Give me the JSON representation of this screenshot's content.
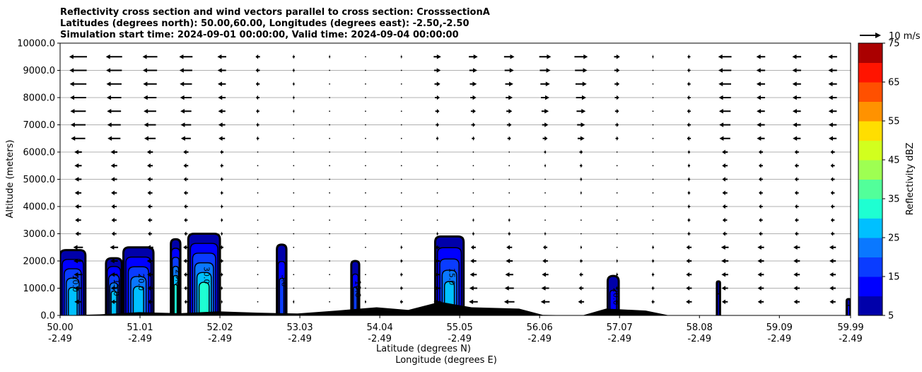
{
  "chart_data": {
    "type": "contour",
    "title_lines": [
      "Reflectivity cross section and wind vectors parallel to cross section: CrosssectionA",
      "Latitudes (degrees north): 50.00,60.00, Longitudes (degrees east): -2.50,-2.50",
      "Simulation start time: 2024-09-01 00:00:00, Valid time: 2024-09-04 00:00:00"
    ],
    "xlabel_lines": [
      "Latitude (degrees N)",
      "Longitude (degrees E)"
    ],
    "ylabel": "Altitude (meters)",
    "ylim": [
      0,
      10000
    ],
    "xlim": [
      50.0,
      59.99
    ],
    "y_ticks": [
      "0.0",
      "1000.0",
      "2000.0",
      "3000.0",
      "4000.0",
      "5000.0",
      "6000.0",
      "7000.0",
      "8000.0",
      "9000.0",
      "10000.0"
    ],
    "x_ticks": [
      {
        "lat": "50.00",
        "lon": "-2.49"
      },
      {
        "lat": "51.01",
        "lon": "-2.49"
      },
      {
        "lat": "52.02",
        "lon": "-2.49"
      },
      {
        "lat": "53.03",
        "lon": "-2.49"
      },
      {
        "lat": "54.04",
        "lon": "-2.49"
      },
      {
        "lat": "55.05",
        "lon": "-2.49"
      },
      {
        "lat": "56.06",
        "lon": "-2.49"
      },
      {
        "lat": "57.07",
        "lon": "-2.49"
      },
      {
        "lat": "58.08",
        "lon": "-2.49"
      },
      {
        "lat": "59.09",
        "lon": "-2.49"
      },
      {
        "lat": "59.99",
        "lon": "-2.49"
      }
    ],
    "grid": "horizontal",
    "colorbar": {
      "label": "Reflectivity dBZ",
      "tick_labels": [
        "5",
        "15",
        "25",
        "35",
        "45",
        "55",
        "65",
        "75"
      ],
      "levels": [
        5,
        10,
        15,
        20,
        25,
        30,
        35,
        40,
        45,
        50,
        55,
        60,
        65,
        70,
        75
      ],
      "colors": [
        "#0000aa",
        "#0000ff",
        "#0a3cff",
        "#0a78ff",
        "#00c0ff",
        "#1effd2",
        "#52ff9a",
        "#9eff52",
        "#d2ff1e",
        "#ffde00",
        "#ff9200",
        "#ff5000",
        "#ff1400",
        "#aa0000"
      ]
    },
    "quiver_key": "10 m/s",
    "cells": [
      {
        "lat_min": 50.0,
        "lat_max": 50.32,
        "top": 2400,
        "max_dbz": 28
      },
      {
        "lat_min": 50.58,
        "lat_max": 50.78,
        "top": 2100,
        "max_dbz": 25
      },
      {
        "lat_min": 50.8,
        "lat_max": 51.18,
        "top": 2500,
        "max_dbz": 26
      },
      {
        "lat_min": 51.4,
        "lat_max": 51.52,
        "top": 2800,
        "max_dbz": 33
      },
      {
        "lat_min": 51.62,
        "lat_max": 52.02,
        "top": 3000,
        "max_dbz": 33
      },
      {
        "lat_min": 52.74,
        "lat_max": 52.86,
        "top": 2600,
        "max_dbz": 18
      },
      {
        "lat_min": 53.68,
        "lat_max": 53.78,
        "top": 2000,
        "max_dbz": 17
      },
      {
        "lat_min": 54.74,
        "lat_max": 55.1,
        "top": 2900,
        "max_dbz": 27
      },
      {
        "lat_min": 56.92,
        "lat_max": 57.06,
        "top": 1450,
        "max_dbz": 14
      },
      {
        "lat_min": 58.3,
        "lat_max": 58.34,
        "top": 1250,
        "max_dbz": 12
      },
      {
        "lat_min": 59.94,
        "lat_max": 59.99,
        "top": 600,
        "max_dbz": 10
      }
    ],
    "contour_labels": [
      "10.0",
      "15.0",
      "20.0",
      "25.0",
      "30.0",
      "5.0"
    ],
    "terrain": [
      {
        "lat": 50.0,
        "height": 0
      },
      {
        "lat": 50.5,
        "height": 40
      },
      {
        "lat": 51.0,
        "height": 120
      },
      {
        "lat": 51.5,
        "height": 80
      },
      {
        "lat": 52.0,
        "height": 150
      },
      {
        "lat": 52.5,
        "height": 100
      },
      {
        "lat": 53.0,
        "height": 70
      },
      {
        "lat": 53.5,
        "height": 180
      },
      {
        "lat": 54.0,
        "height": 300
      },
      {
        "lat": 54.4,
        "height": 200
      },
      {
        "lat": 54.8,
        "height": 500
      },
      {
        "lat": 55.2,
        "height": 300
      },
      {
        "lat": 55.8,
        "height": 250
      },
      {
        "lat": 56.1,
        "height": 20
      },
      {
        "lat": 56.6,
        "height": 0
      },
      {
        "lat": 56.9,
        "height": 250
      },
      {
        "lat": 57.4,
        "height": 180
      },
      {
        "lat": 57.7,
        "height": 0
      },
      {
        "lat": 59.99,
        "height": 0
      }
    ],
    "wind_u_profile": [
      {
        "altitude": 500,
        "u": [
          -2.5,
          -2,
          -1.5,
          -1,
          -0.5,
          0.3,
          0.5,
          0,
          -0.5,
          -1,
          -2.5,
          -3,
          -3.5,
          -3,
          -2,
          -1,
          -1,
          -2,
          -2,
          -2,
          -2,
          -2
        ]
      },
      {
        "altitude": 9500,
        "u": [
          -6,
          -5.5,
          -5,
          -4.5,
          -3,
          -1.5,
          -0.8,
          -0.5,
          0,
          0.5,
          2.5,
          3,
          3.5,
          4,
          4.5,
          2,
          0.5,
          -1,
          -4.5,
          -3,
          -3,
          -3
        ]
      }
    ]
  }
}
